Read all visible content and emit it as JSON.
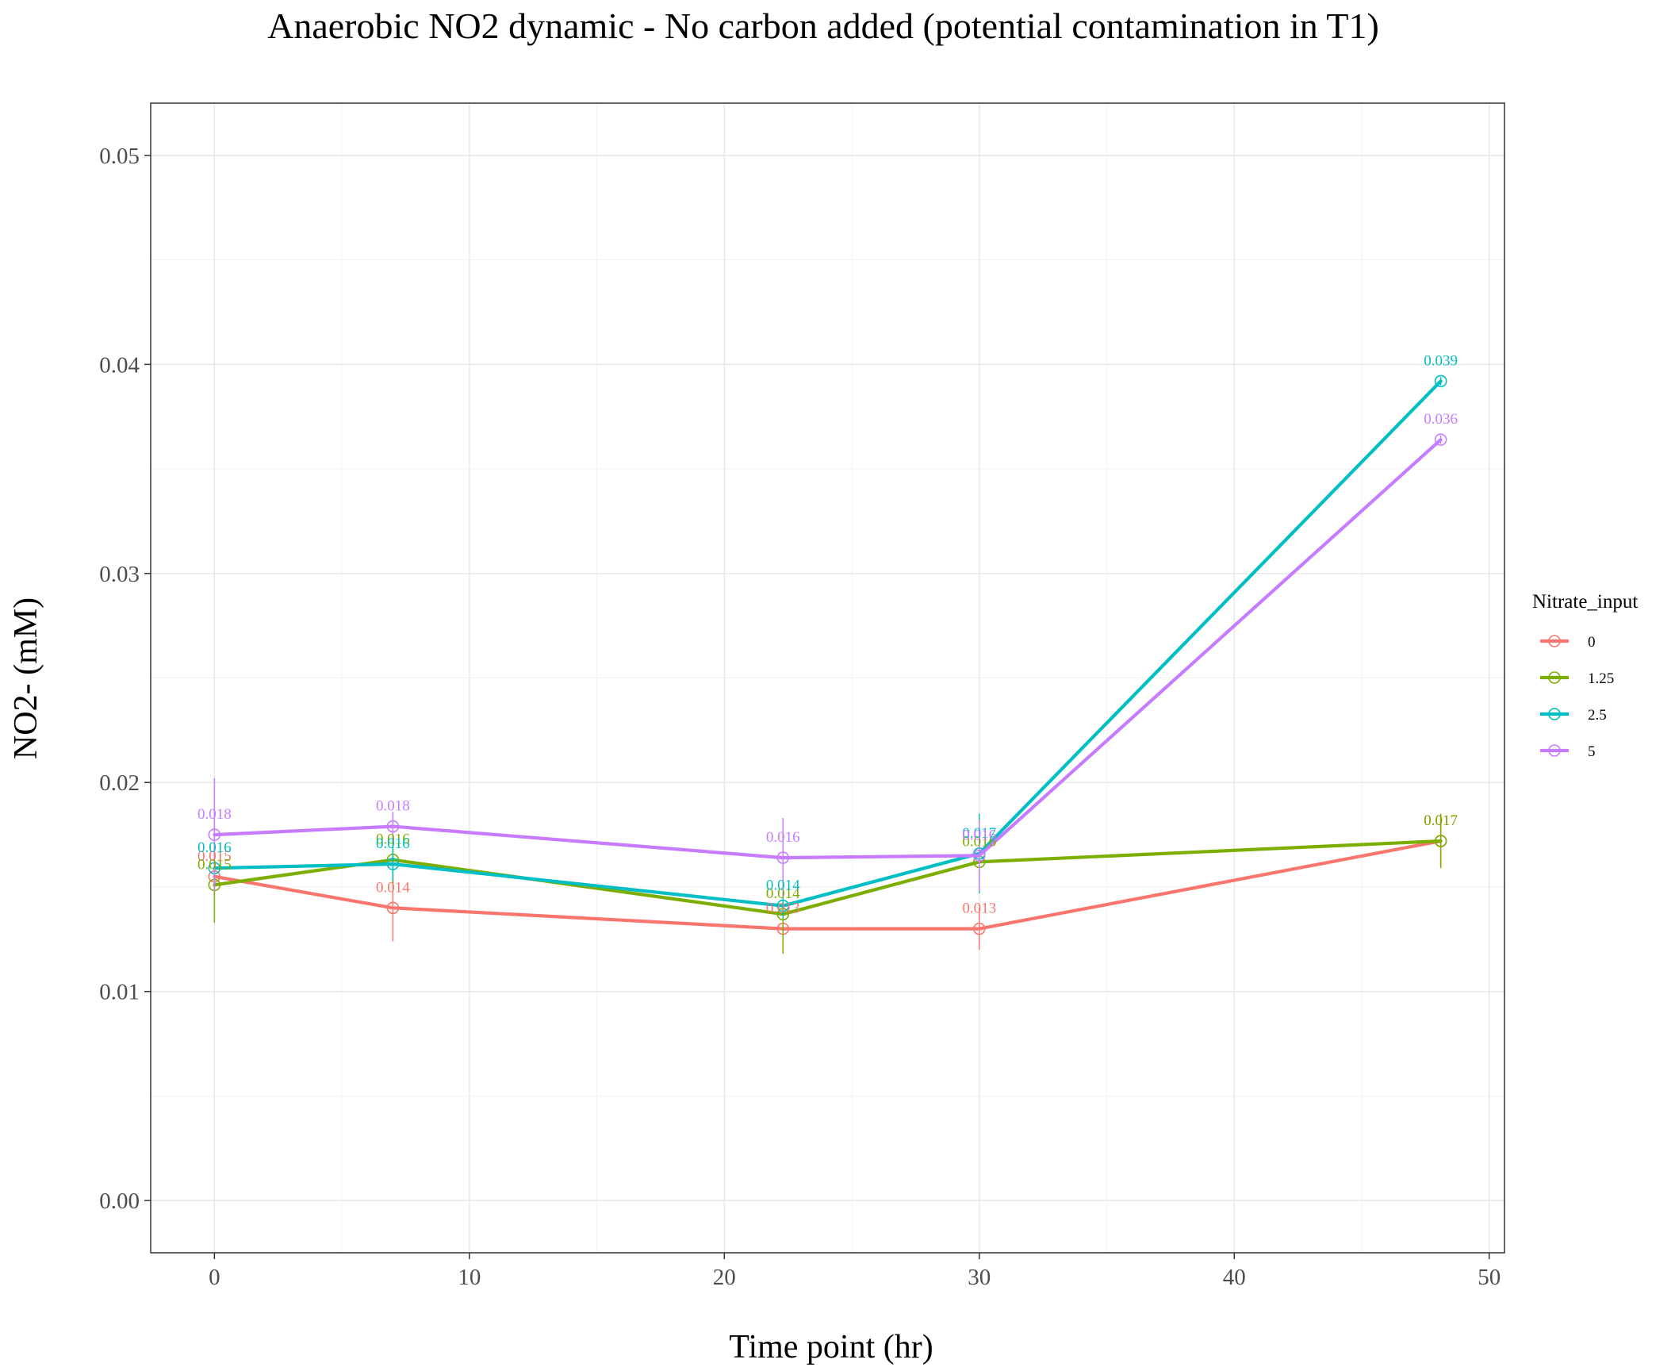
{
  "chart_data": {
    "type": "line",
    "title": "Anaerobic NO2 dynamic - No carbon added (potential contamination in T1)",
    "xlabel": "Time point (hr)",
    "ylabel": "NO2- (mM)",
    "xlim": [
      -2.5,
      50.6
    ],
    "ylim": [
      -0.0025,
      0.0525
    ],
    "x_ticks": [
      0,
      10,
      20,
      30,
      40,
      50
    ],
    "y_ticks": [
      0.0,
      0.01,
      0.02,
      0.03,
      0.04,
      0.05
    ],
    "x_tick_labels": [
      "0",
      "10",
      "20",
      "30",
      "40",
      "50"
    ],
    "y_tick_labels": [
      "0.00",
      "0.01",
      "0.02",
      "0.03",
      "0.04",
      "0.05"
    ],
    "grid": true,
    "legend": {
      "title": "Nitrate_input",
      "position": "right"
    },
    "series": [
      {
        "name": "0",
        "color": "#F8766D",
        "points": [
          {
            "x": 0,
            "y": 0.0155,
            "err": 0.0008,
            "label": "0.015"
          },
          {
            "x": 7,
            "y": 0.014,
            "err": 0.0016,
            "label": "0.014"
          },
          {
            "x": 22.3,
            "y": 0.013,
            "err": 0.0008,
            "label": "0.013"
          },
          {
            "x": 30,
            "y": 0.013,
            "err": 0.001,
            "label": "0.013"
          },
          {
            "x": 48.1,
            "y": 0.0172,
            "err": 0.0013,
            "label": "0.017"
          }
        ]
      },
      {
        "name": "1.25",
        "color": "#7CAE00",
        "points": [
          {
            "x": 0,
            "y": 0.0151,
            "err": 0.0018,
            "label": "0.015"
          },
          {
            "x": 7,
            "y": 0.0163,
            "err": 0.0012,
            "label": "0.016"
          },
          {
            "x": 22.3,
            "y": 0.0137,
            "err": 0.0019,
            "label": "0.014"
          },
          {
            "x": 30,
            "y": 0.0162,
            "err": 0.0008,
            "label": "0.016"
          },
          {
            "x": 48.1,
            "y": 0.0172,
            "err": 0.0013,
            "label": "0.017"
          }
        ]
      },
      {
        "name": "2.5",
        "color": "#00BFC4",
        "points": [
          {
            "x": 0,
            "y": 0.0159,
            "err": 0.0008,
            "label": "0.016"
          },
          {
            "x": 7,
            "y": 0.0161,
            "err": 0.0008,
            "label": "0.016"
          },
          {
            "x": 22.3,
            "y": 0.0141,
            "err": 0.0006,
            "label": "0.014"
          },
          {
            "x": 30,
            "y": 0.0166,
            "err": 0.0019,
            "label": "0.017"
          },
          {
            "x": 48.1,
            "y": 0.0392,
            "err": 0.0002,
            "label": "0.039"
          }
        ]
      },
      {
        "name": "5",
        "color": "#C77CFF",
        "points": [
          {
            "x": 0,
            "y": 0.0175,
            "err": 0.0027,
            "label": "0.018"
          },
          {
            "x": 7,
            "y": 0.0179,
            "err": 0.0007,
            "label": "0.018"
          },
          {
            "x": 22.3,
            "y": 0.0164,
            "err": 0.0019,
            "label": "0.016"
          },
          {
            "x": 30,
            "y": 0.0165,
            "err": 0.0017,
            "label": "0.016"
          },
          {
            "x": 48.1,
            "y": 0.0364,
            "err": 0.0002,
            "label": "0.036"
          }
        ]
      }
    ]
  }
}
